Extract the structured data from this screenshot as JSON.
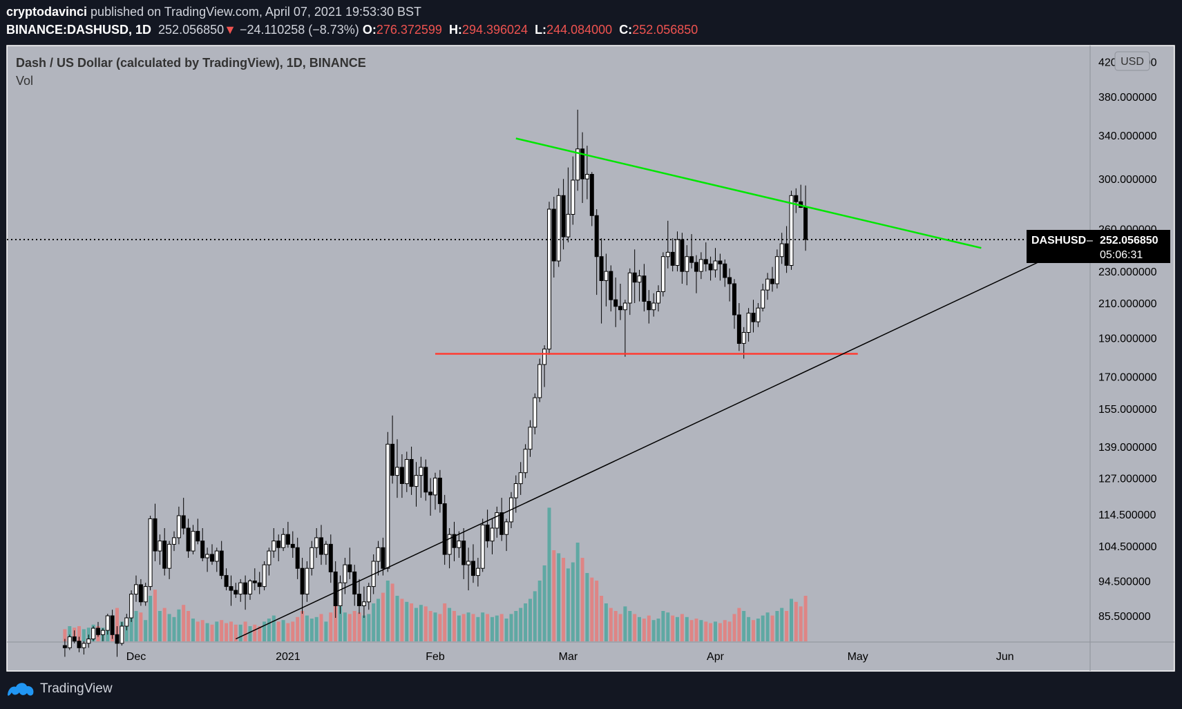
{
  "header": {
    "author": "cryptodavinci",
    "published_text": " published on TradingView.com, April 07, 2021 19:53:30 BST",
    "symbol": "BINANCE:DASHUSD, 1D",
    "last_price": "252.056850",
    "change_arrow": "▼",
    "change": "−24.110258 (−8.73%)",
    "o_label": "O:",
    "o_value": "276.372599",
    "h_label": "H:",
    "h_value": "294.396024",
    "l_label": "L:",
    "l_value": "244.084000",
    "c_label": "C:",
    "c_value": "252.056850"
  },
  "legend": {
    "title": "Dash / US Dollar (calculated by TradingView), 1D, BINANCE",
    "volume_label": "Vol"
  },
  "currency_button": "USD",
  "price_tag": {
    "symbol": "DASHUSD",
    "value": "252.056850",
    "countdown": "05:06:31"
  },
  "footer": {
    "brand": "TradingView"
  },
  "colors": {
    "background": "#b2b5be",
    "up_candle": "#ffffff",
    "down_candle": "#000000",
    "up_volume": "#5fa8a3",
    "down_volume": "#de8585",
    "resistance_line": "#00e600",
    "support_line": "#ff3b30",
    "trend_line": "#000000"
  },
  "chart_data": {
    "type": "candlestick",
    "title": "Dash / US Dollar (calculated by TradingView), 1D, BINANCE",
    "y_scale": "log",
    "y_axis_ticks": [
      "420.000000",
      "380.000000",
      "340.000000",
      "300.000000",
      "260.000000",
      "230.000000",
      "210.000000",
      "190.000000",
      "170.000000",
      "155.000000",
      "139.000000",
      "127.000000",
      "114.500000",
      "104.500000",
      "94.500000",
      "85.500000"
    ],
    "x_axis_ticks": [
      "Dec",
      "2021",
      "Feb",
      "Mar",
      "Apr",
      "May",
      "Jun"
    ],
    "last_price": 252.05685,
    "drawn_lines": [
      {
        "name": "descending resistance",
        "color": "#00e600",
        "from": {
          "date": "2021-02-18",
          "price": 337
        },
        "to": {
          "date": "2021-05-27",
          "price": 246
        }
      },
      {
        "name": "horizontal support",
        "color": "#ff3b30",
        "from": {
          "date": "2021-02-01",
          "price": 181.5
        },
        "to": {
          "date": "2021-05-01",
          "price": 181.5
        }
      },
      {
        "name": "rising trend line",
        "color": "#000000",
        "from": {
          "date": "2020-12-21",
          "price": 80
        },
        "to": {
          "date": "2021-06-20",
          "price": 255
        }
      }
    ],
    "ohlcv": [
      [
        "2020-11-15",
        78.5,
        80.0,
        76.0,
        78.0,
        8
      ],
      [
        "2020-11-16",
        78.0,
        81.0,
        77.5,
        80.5,
        10
      ],
      [
        "2020-11-17",
        80.5,
        82.0,
        79.0,
        79.5,
        9
      ],
      [
        "2020-11-18",
        79.5,
        80.5,
        77.0,
        78.0,
        10
      ],
      [
        "2020-11-19",
        78.0,
        79.5,
        76.5,
        79.0,
        8
      ],
      [
        "2020-11-20",
        79.0,
        81.0,
        78.0,
        80.0,
        9
      ],
      [
        "2020-11-21",
        80.0,
        83.0,
        79.5,
        82.5,
        11
      ],
      [
        "2020-11-22",
        82.5,
        84.0,
        80.5,
        81.0,
        10
      ],
      [
        "2020-11-23",
        81.0,
        82.5,
        79.5,
        82.0,
        9
      ],
      [
        "2020-11-24",
        82.0,
        86.0,
        81.0,
        85.5,
        14
      ],
      [
        "2020-11-25",
        85.5,
        87.0,
        80.0,
        81.0,
        16
      ],
      [
        "2020-11-26",
        81.0,
        83.0,
        76.0,
        79.0,
        22
      ],
      [
        "2020-11-27",
        79.0,
        84.0,
        78.5,
        83.0,
        13
      ],
      [
        "2020-11-28",
        83.0,
        86.0,
        82.0,
        85.0,
        11
      ],
      [
        "2020-11-29",
        85.0,
        92.0,
        84.0,
        91.0,
        18
      ],
      [
        "2020-11-30",
        91.0,
        96.0,
        89.0,
        93.5,
        20
      ],
      [
        "2020-12-01",
        93.5,
        95.0,
        88.0,
        89.0,
        19
      ],
      [
        "2020-12-02",
        89.0,
        94.0,
        88.0,
        93.0,
        14
      ],
      [
        "2020-12-03",
        93.0,
        114.0,
        92.0,
        113.0,
        30
      ],
      [
        "2020-12-04",
        113.0,
        118.0,
        100.0,
        103.0,
        34
      ],
      [
        "2020-12-05",
        103.0,
        108.0,
        99.0,
        106.0,
        20
      ],
      [
        "2020-12-06",
        106.0,
        110.0,
        96.0,
        98.0,
        22
      ],
      [
        "2020-12-07",
        98.0,
        106.0,
        95.0,
        105.0,
        18
      ],
      [
        "2020-12-08",
        105.0,
        109.0,
        103.0,
        107.0,
        16
      ],
      [
        "2020-12-09",
        107.0,
        117.0,
        105.0,
        114.0,
        21
      ],
      [
        "2020-12-10",
        114.0,
        120.0,
        108.0,
        110.0,
        24
      ],
      [
        "2020-12-11",
        110.0,
        113.0,
        101.0,
        103.0,
        20
      ],
      [
        "2020-12-12",
        103.0,
        111.0,
        102.0,
        109.0,
        15
      ],
      [
        "2020-12-13",
        109.0,
        113.0,
        105.0,
        106.0,
        13
      ],
      [
        "2020-12-14",
        106.0,
        110.0,
        100.0,
        101.0,
        14
      ],
      [
        "2020-12-15",
        101.0,
        104.0,
        97.0,
        102.0,
        12
      ],
      [
        "2020-12-16",
        102.0,
        105.0,
        99.0,
        100.0,
        11
      ],
      [
        "2020-12-17",
        100.0,
        104.0,
        97.0,
        103.0,
        13
      ],
      [
        "2020-12-18",
        103.0,
        106.0,
        95.0,
        96.0,
        14
      ],
      [
        "2020-12-19",
        96.0,
        98.0,
        92.0,
        93.0,
        12
      ],
      [
        "2020-12-20",
        93.0,
        96.0,
        88.0,
        92.0,
        13
      ],
      [
        "2020-12-21",
        92.0,
        94.0,
        90.0,
        91.0,
        11
      ],
      [
        "2020-12-22",
        91.0,
        95.0,
        89.0,
        94.0,
        11
      ],
      [
        "2020-12-23",
        94.0,
        96.0,
        87.0,
        91.0,
        13
      ],
      [
        "2020-12-24",
        91.0,
        95.0,
        89.5,
        94.5,
        10
      ],
      [
        "2020-12-25",
        94.5,
        98.0,
        92.0,
        94.0,
        11
      ],
      [
        "2020-12-26",
        94.0,
        97.0,
        91.0,
        93.0,
        10
      ],
      [
        "2020-12-27",
        93.0,
        100.0,
        92.0,
        99.0,
        13
      ],
      [
        "2020-12-28",
        99.0,
        104.0,
        96.0,
        103.0,
        15
      ],
      [
        "2020-12-29",
        103.0,
        110.0,
        101.0,
        106.0,
        17
      ],
      [
        "2020-12-30",
        106.0,
        108.0,
        100.0,
        104.0,
        13
      ],
      [
        "2020-12-31",
        104.0,
        110.0,
        103.0,
        108.0,
        14
      ],
      [
        "2021-01-01",
        108.0,
        112.0,
        104.0,
        105.0,
        12
      ],
      [
        "2021-01-02",
        105.0,
        109.0,
        101.0,
        104.0,
        13
      ],
      [
        "2021-01-03",
        104.0,
        107.0,
        95.0,
        98.0,
        16
      ],
      [
        "2021-01-04",
        98.0,
        101.0,
        86.0,
        91.0,
        20
      ],
      [
        "2021-01-05",
        91.0,
        100.0,
        89.0,
        98.0,
        17
      ],
      [
        "2021-01-06",
        98.0,
        106.0,
        96.0,
        104.0,
        15
      ],
      [
        "2021-01-07",
        104.0,
        110.0,
        101.0,
        107.0,
        16
      ],
      [
        "2021-01-08",
        107.0,
        111.0,
        99.0,
        102.0,
        18
      ],
      [
        "2021-01-09",
        102.0,
        106.0,
        99.0,
        105.0,
        13
      ],
      [
        "2021-01-10",
        105.0,
        108.0,
        94.0,
        97.0,
        19
      ],
      [
        "2021-01-11",
        97.0,
        100.0,
        85.0,
        88.0,
        28
      ],
      [
        "2021-01-12",
        88.0,
        96.0,
        86.0,
        94.0,
        23
      ],
      [
        "2021-01-13",
        94.0,
        101.0,
        91.0,
        99.0,
        19
      ],
      [
        "2021-01-14",
        99.0,
        104.0,
        95.0,
        97.0,
        18
      ],
      [
        "2021-01-15",
        97.0,
        99.0,
        88.0,
        91.0,
        20
      ],
      [
        "2021-01-16",
        91.0,
        95.0,
        86.0,
        88.0,
        19
      ],
      [
        "2021-01-17",
        88.0,
        93.0,
        85.0,
        89.0,
        17
      ],
      [
        "2021-01-18",
        89.0,
        94.0,
        87.0,
        93.0,
        18
      ],
      [
        "2021-01-19",
        93.0,
        102.0,
        91.0,
        100.0,
        25
      ],
      [
        "2021-01-20",
        100.0,
        106.0,
        96.0,
        104.0,
        28
      ],
      [
        "2021-01-21",
        104.0,
        107.0,
        96.0,
        98.0,
        32
      ],
      [
        "2021-01-22",
        98.0,
        145.0,
        97.0,
        140.0,
        40
      ],
      [
        "2021-01-23",
        140.0,
        152.0,
        125.0,
        128.0,
        38
      ],
      [
        "2021-01-24",
        128.0,
        142.0,
        120.0,
        131.0,
        30
      ],
      [
        "2021-01-25",
        131.0,
        136.0,
        120.0,
        125.0,
        28
      ],
      [
        "2021-01-26",
        125.0,
        137.0,
        122.0,
        134.0,
        26
      ],
      [
        "2021-01-27",
        134.0,
        139.0,
        121.0,
        124.0,
        25
      ],
      [
        "2021-01-28",
        124.0,
        133.0,
        117.0,
        128.0,
        22
      ],
      [
        "2021-01-29",
        128.0,
        135.0,
        120.0,
        131.0,
        24
      ],
      [
        "2021-01-30",
        131.0,
        134.0,
        119.0,
        122.0,
        23
      ],
      [
        "2021-01-31",
        122.0,
        127.0,
        114.0,
        121.0,
        20
      ],
      [
        "2021-02-01",
        121.0,
        129.0,
        116.0,
        127.0,
        19
      ],
      [
        "2021-02-02",
        127.0,
        130.0,
        115.0,
        118.0,
        18
      ],
      [
        "2021-02-03",
        118.0,
        121.0,
        99.0,
        102.0,
        25
      ],
      [
        "2021-02-04",
        102.0,
        110.0,
        98.0,
        108.0,
        22
      ],
      [
        "2021-02-05",
        108.0,
        112.0,
        100.0,
        104.0,
        20
      ],
      [
        "2021-02-06",
        104.0,
        109.0,
        101.0,
        106.0,
        17
      ],
      [
        "2021-02-07",
        106.0,
        110.0,
        95.0,
        99.0,
        18
      ],
      [
        "2021-02-08",
        99.0,
        104.0,
        92.0,
        100.0,
        19
      ],
      [
        "2021-02-09",
        100.0,
        105.0,
        94.0,
        96.0,
        18
      ],
      [
        "2021-02-10",
        96.0,
        101.0,
        93.0,
        98.0,
        16
      ],
      [
        "2021-02-11",
        98.0,
        113.0,
        97.0,
        111.0,
        19
      ],
      [
        "2021-02-12",
        111.0,
        116.0,
        104.0,
        106.0,
        18
      ],
      [
        "2021-02-13",
        106.0,
        113.0,
        102.0,
        110.0,
        16
      ],
      [
        "2021-02-14",
        110.0,
        117.0,
        107.0,
        115.0,
        17
      ],
      [
        "2021-02-15",
        115.0,
        120.0,
        106.0,
        108.0,
        18
      ],
      [
        "2021-02-16",
        108.0,
        113.0,
        103.0,
        112.0,
        15
      ],
      [
        "2021-02-17",
        112.0,
        122.0,
        110.0,
        120.0,
        18
      ],
      [
        "2021-02-18",
        120.0,
        128.0,
        115.0,
        125.0,
        20
      ],
      [
        "2021-02-19",
        125.0,
        133.0,
        121.0,
        129.0,
        22
      ],
      [
        "2021-02-20",
        129.0,
        140.0,
        127.0,
        138.0,
        25
      ],
      [
        "2021-02-21",
        138.0,
        150.0,
        135.0,
        147.0,
        28
      ],
      [
        "2021-02-22",
        147.0,
        162.0,
        144.0,
        160.0,
        33
      ],
      [
        "2021-02-23",
        160.0,
        179.0,
        158.0,
        176.0,
        40
      ],
      [
        "2021-02-24",
        176.0,
        186.0,
        165.0,
        184.0,
        50
      ],
      [
        "2021-02-25",
        184.0,
        281.0,
        181.0,
        275.0,
        88
      ],
      [
        "2021-02-26",
        275.0,
        285.0,
        226.0,
        237.0,
        60
      ],
      [
        "2021-02-27",
        237.0,
        292.0,
        233.0,
        286.0,
        58
      ],
      [
        "2021-02-28",
        286.0,
        300.0,
        245.0,
        254.0,
        55
      ],
      [
        "2021-03-01",
        254.0,
        310.0,
        250.0,
        271.0,
        48
      ],
      [
        "2021-03-02",
        271.0,
        320.0,
        263.0,
        299.0,
        52
      ],
      [
        "2021-03-03",
        299.0,
        366.0,
        290.0,
        327.0,
        65
      ],
      [
        "2021-03-04",
        327.0,
        343.0,
        280.0,
        300.0,
        55
      ],
      [
        "2021-03-05",
        300.0,
        330.0,
        283.0,
        304.0,
        45
      ],
      [
        "2021-03-06",
        304.0,
        306.0,
        262.0,
        270.0,
        42
      ],
      [
        "2021-03-07",
        270.0,
        275.0,
        215.0,
        240.0,
        40
      ],
      [
        "2021-03-08",
        240.0,
        253.0,
        198.0,
        224.0,
        30
      ],
      [
        "2021-03-09",
        224.0,
        242.0,
        208.0,
        230.0,
        25
      ],
      [
        "2021-03-10",
        230.0,
        234.0,
        205.0,
        212.0,
        22
      ],
      [
        "2021-03-11",
        212.0,
        226.0,
        196.0,
        208.0,
        20
      ],
      [
        "2021-03-12",
        208.0,
        222.0,
        200.0,
        206.0,
        18
      ],
      [
        "2021-03-13",
        206.0,
        212.0,
        180.0,
        210.0,
        23
      ],
      [
        "2021-03-14",
        210.0,
        232.0,
        203.0,
        229.0,
        20
      ],
      [
        "2021-03-15",
        229.0,
        245.0,
        210.0,
        223.0,
        18
      ],
      [
        "2021-03-16",
        223.0,
        231.0,
        211.0,
        227.0,
        16
      ],
      [
        "2021-03-17",
        227.0,
        235.0,
        205.0,
        211.0,
        15
      ],
      [
        "2021-03-18",
        211.0,
        218.0,
        198.0,
        206.0,
        17
      ],
      [
        "2021-03-19",
        206.0,
        216.0,
        202.0,
        210.0,
        14
      ],
      [
        "2021-03-20",
        210.0,
        221.0,
        205.0,
        217.0,
        15
      ],
      [
        "2021-03-21",
        217.0,
        243.0,
        214.0,
        240.0,
        20
      ],
      [
        "2021-03-22",
        240.0,
        266.0,
        232.0,
        243.0,
        19
      ],
      [
        "2021-03-23",
        243.0,
        253.0,
        230.0,
        234.0,
        17
      ],
      [
        "2021-03-24",
        234.0,
        258.0,
        230.0,
        252.0,
        16
      ],
      [
        "2021-03-25",
        252.0,
        257.0,
        222.0,
        230.0,
        18
      ],
      [
        "2021-03-26",
        230.0,
        248.0,
        221.0,
        240.0,
        16
      ],
      [
        "2021-03-27",
        240.0,
        256.0,
        232.0,
        236.0,
        14
      ],
      [
        "2021-03-28",
        236.0,
        241.0,
        216.0,
        230.0,
        15
      ],
      [
        "2021-03-29",
        230.0,
        243.0,
        225.0,
        238.0,
        14
      ],
      [
        "2021-03-30",
        238.0,
        250.0,
        230.0,
        235.0,
        13
      ],
      [
        "2021-03-31",
        235.0,
        240.0,
        224.0,
        231.0,
        12
      ],
      [
        "2021-04-01",
        231.0,
        246.0,
        226.0,
        237.0,
        13
      ],
      [
        "2021-04-02",
        237.0,
        242.0,
        224.0,
        235.0,
        12
      ],
      [
        "2021-04-03",
        235.0,
        238.0,
        220.0,
        226.0,
        14
      ],
      [
        "2021-04-04",
        226.0,
        232.0,
        211.0,
        222.0,
        13
      ],
      [
        "2021-04-05",
        222.0,
        225.0,
        195.0,
        203.0,
        18
      ],
      [
        "2021-04-06",
        203.0,
        210.0,
        183.0,
        187.0,
        22
      ],
      [
        "2021-04-07",
        187.0,
        196.0,
        179.0,
        193.0,
        20
      ],
      [
        "2021-04-08",
        193.0,
        207.0,
        188.0,
        204.0,
        16
      ],
      [
        "2021-04-09",
        204.0,
        212.0,
        193.0,
        199.0,
        14
      ],
      [
        "2021-04-10",
        199.0,
        210.0,
        196.0,
        207.0,
        15
      ],
      [
        "2021-04-11",
        207.0,
        222.0,
        205.0,
        218.0,
        17
      ],
      [
        "2021-04-12",
        218.0,
        229.0,
        212.0,
        225.0,
        19
      ],
      [
        "2021-04-13",
        225.0,
        233.0,
        217.0,
        222.0,
        17
      ],
      [
        "2021-04-14",
        222.0,
        245.0,
        219.0,
        240.0,
        20
      ],
      [
        "2021-04-15",
        240.0,
        257.0,
        235.0,
        249.0,
        22
      ],
      [
        "2021-04-16",
        249.0,
        262.0,
        229.0,
        234.0,
        20
      ],
      [
        "2021-04-17",
        234.0,
        290.0,
        231.0,
        286.0,
        28
      ],
      [
        "2021-04-18",
        286.0,
        292.0,
        272.0,
        281.0,
        26
      ],
      [
        "2021-04-19",
        281.0,
        295.0,
        276.0,
        276.4,
        23
      ],
      [
        "2021-04-20",
        276.37,
        294.4,
        244.08,
        252.06,
        30
      ]
    ]
  }
}
